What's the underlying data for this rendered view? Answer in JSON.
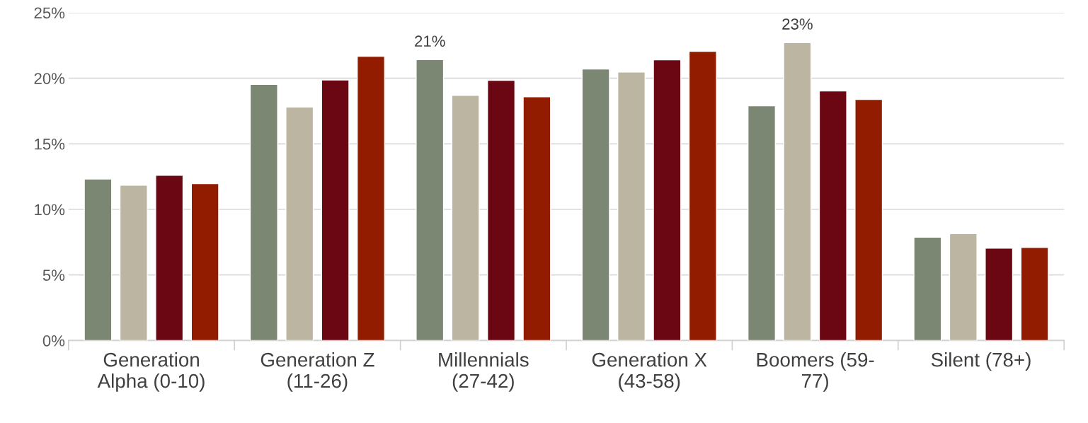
{
  "chart_data": {
    "type": "bar",
    "categories": [
      "Generation\nAlpha (0-10)",
      "Generation Z\n(11-26)",
      "Millennials\n(27-42)",
      "Generation X\n(43-58)",
      "Boomers (59-\n77)",
      "Silent (78+)"
    ],
    "series": [
      {
        "color": "#7b8673",
        "values": [
          12.32,
          19.53,
          21.42,
          20.7,
          17.9,
          7.88
        ],
        "value_labels": [
          null,
          null,
          "21%",
          null,
          null,
          null
        ]
      },
      {
        "color": "#bcb5a1",
        "values": [
          11.85,
          17.81,
          18.7,
          20.48,
          22.72,
          8.15
        ],
        "value_labels": [
          null,
          null,
          null,
          null,
          "23%",
          null
        ]
      },
      {
        "color": "#6a0713",
        "values": [
          12.6,
          19.87,
          19.84,
          21.4,
          19.03,
          7.05
        ]
      },
      {
        "color": "#921c00",
        "values": [
          11.96,
          21.67,
          18.59,
          22.05,
          18.39,
          7.1
        ]
      }
    ],
    "ylim": [
      0,
      25
    ],
    "yticks": [
      {
        "value": 0,
        "label": "0%"
      },
      {
        "value": 5,
        "label": "5%"
      },
      {
        "value": 10,
        "label": "10%"
      },
      {
        "value": 15,
        "label": "15%"
      },
      {
        "value": 20,
        "label": "20%"
      },
      {
        "value": 25,
        "label": "25%"
      }
    ],
    "grid": "y"
  }
}
